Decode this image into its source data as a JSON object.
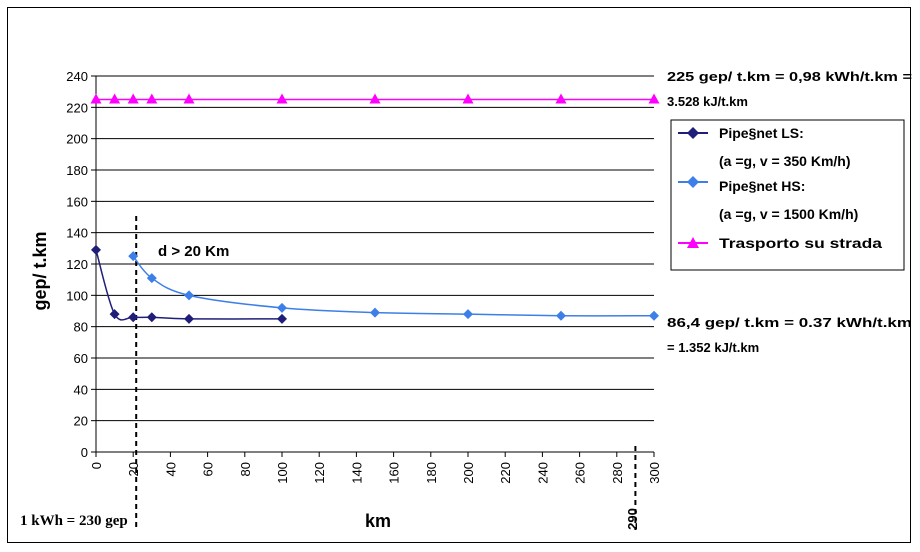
{
  "chart_data": {
    "type": "line",
    "xlabel": "km",
    "ylabel": "gep/ t.km",
    "xlim": [
      0,
      300
    ],
    "ylim": [
      0,
      240
    ],
    "x_ticks": [
      "0",
      "20",
      "40",
      "60",
      "80",
      "100",
      "120",
      "140",
      "160",
      "180",
      "200",
      "220",
      "240",
      "260",
      "280",
      "300"
    ],
    "y_ticks": [
      "0",
      "20",
      "40",
      "60",
      "80",
      "100",
      "120",
      "140",
      "160",
      "180",
      "200",
      "220",
      "240"
    ],
    "grid": "horizontal",
    "legend_position": "right",
    "series": [
      {
        "name": "Pipe§net  LS:",
        "name_line2": "(a =g,  v = 350 Km/h)",
        "color": "#1f1f7a",
        "marker": "diamond",
        "x": [
          0,
          10,
          20,
          30,
          50,
          100
        ],
        "y": [
          129,
          88,
          86,
          86,
          85,
          85
        ]
      },
      {
        "name": "Pipe§net  HS:",
        "name_line2": "(a =g,  v = 1500 Km/h)",
        "color": "#3d7fe8",
        "marker": "diamond",
        "x": [
          20,
          30,
          50,
          100,
          150,
          200,
          250,
          300
        ],
        "y": [
          125,
          111,
          100,
          92,
          89,
          88,
          87,
          87
        ]
      },
      {
        "name": "Trasporto su strada",
        "color": "#ff00ff",
        "marker": "triangle",
        "x": [
          0,
          10,
          20,
          30,
          50,
          100,
          150,
          200,
          250,
          300
        ],
        "y": [
          225,
          225,
          225,
          225,
          225,
          225,
          225,
          225,
          225,
          225
        ]
      }
    ],
    "annotations": {
      "top_right_1": "225  gep/ t.km = 0,98 kWh/t.km =",
      "top_right_2": "3.528 kJ/t.km",
      "mid_right_1": "86,4  gep/ t.km = 0.37 kWh/t.km",
      "mid_right_2": "= 1.352 kJ/t.km",
      "threshold": "d > 20 Km",
      "threshold_x": 20,
      "marker_290_label": "290",
      "marker_290_x": 290,
      "bottom_left": "1 kWh = 230 gep"
    }
  }
}
